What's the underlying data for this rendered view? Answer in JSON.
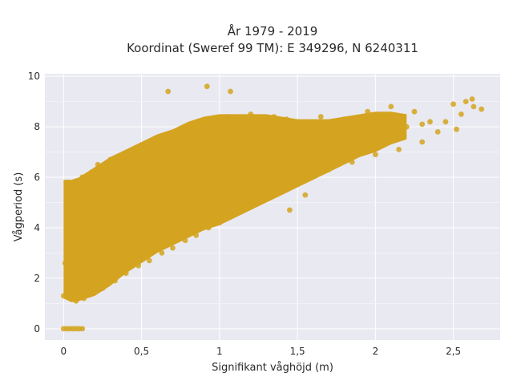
{
  "chart_data": {
    "type": "scatter",
    "title_lines": [
      "År 1979 - 2019",
      "Koordinat (Sweref 99 TM): E 349296, N 6240311"
    ],
    "xlabel": "Signifikant våghöjd (m)",
    "ylabel": "Vågperiod (s)",
    "xlim": [
      -0.12,
      2.8
    ],
    "ylim": [
      -0.45,
      10.1
    ],
    "xticks": [
      0,
      0.5,
      1,
      1.5,
      2,
      2.5
    ],
    "xtick_labels": [
      "0",
      "0,5",
      "1",
      "1,5",
      "2",
      "2,5"
    ],
    "yticks": [
      0,
      2,
      4,
      6,
      8,
      10
    ],
    "ytick_labels": [
      "0",
      "2",
      "4",
      "6",
      "8",
      "10"
    ],
    "grid": true,
    "marker_color": "#D4A420",
    "plot_bg": "#E9E9F1",
    "series": [
      {
        "values": [
          [
            0.0,
            0.0
          ],
          [
            0.02,
            0.0
          ],
          [
            0.04,
            0.0
          ],
          [
            0.06,
            0.0
          ],
          [
            0.08,
            0.0
          ],
          [
            0.1,
            0.0
          ],
          [
            0.12,
            0.0
          ],
          [
            0.0,
            1.3
          ],
          [
            0.01,
            2.6
          ],
          [
            0.02,
            4.0
          ],
          [
            0.03,
            5.8
          ],
          [
            0.05,
            1.2
          ],
          [
            0.05,
            3.2
          ],
          [
            0.06,
            5.7
          ],
          [
            0.08,
            1.1
          ],
          [
            0.1,
            3.8
          ],
          [
            0.12,
            6.0
          ],
          [
            0.13,
            1.2
          ],
          [
            0.15,
            4.8
          ],
          [
            0.18,
            6.2
          ],
          [
            0.19,
            1.4
          ],
          [
            0.2,
            3.0
          ],
          [
            0.22,
            6.5
          ],
          [
            0.25,
            1.6
          ],
          [
            0.27,
            4.2
          ],
          [
            0.3,
            6.7
          ],
          [
            0.33,
            1.9
          ],
          [
            0.35,
            3.6
          ],
          [
            0.38,
            6.8
          ],
          [
            0.4,
            2.2
          ],
          [
            0.43,
            5.0
          ],
          [
            0.45,
            7.0
          ],
          [
            0.48,
            2.5
          ],
          [
            0.5,
            4.4
          ],
          [
            0.53,
            7.2
          ],
          [
            0.55,
            2.7
          ],
          [
            0.58,
            5.5
          ],
          [
            0.6,
            7.4
          ],
          [
            0.63,
            3.0
          ],
          [
            0.65,
            4.8
          ],
          [
            0.68,
            7.6
          ],
          [
            0.7,
            3.2
          ],
          [
            0.73,
            6.0
          ],
          [
            0.75,
            7.8
          ],
          [
            0.78,
            3.5
          ],
          [
            0.8,
            5.2
          ],
          [
            0.83,
            8.0
          ],
          [
            0.85,
            3.7
          ],
          [
            0.88,
            6.4
          ],
          [
            0.9,
            8.2
          ],
          [
            0.93,
            4.0
          ],
          [
            0.95,
            5.8
          ],
          [
            0.98,
            8.3
          ],
          [
            1.0,
            4.2
          ],
          [
            1.03,
            6.8
          ],
          [
            1.05,
            8.4
          ],
          [
            1.08,
            4.5
          ],
          [
            1.1,
            6.2
          ],
          [
            1.13,
            8.3
          ],
          [
            1.15,
            4.8
          ],
          [
            1.18,
            7.0
          ],
          [
            1.2,
            8.5
          ],
          [
            1.23,
            5.0
          ],
          [
            1.25,
            6.5
          ],
          [
            1.28,
            8.2
          ],
          [
            1.3,
            5.3
          ],
          [
            1.33,
            7.3
          ],
          [
            1.35,
            8.4
          ],
          [
            1.38,
            5.5
          ],
          [
            1.4,
            6.8
          ],
          [
            1.43,
            8.3
          ],
          [
            1.45,
            5.8
          ],
          [
            1.48,
            7.5
          ],
          [
            1.5,
            8.2
          ],
          [
            1.55,
            6.0
          ],
          [
            1.6,
            7.2
          ],
          [
            1.65,
            8.4
          ],
          [
            1.7,
            6.3
          ],
          [
            1.75,
            7.5
          ],
          [
            1.8,
            8.3
          ],
          [
            1.85,
            6.6
          ],
          [
            1.9,
            7.7
          ],
          [
            1.95,
            8.6
          ],
          [
            2.0,
            6.9
          ],
          [
            2.05,
            7.8
          ],
          [
            2.1,
            8.8
          ],
          [
            2.15,
            7.1
          ],
          [
            2.2,
            8.0
          ],
          [
            2.25,
            8.6
          ],
          [
            2.3,
            7.4
          ],
          [
            2.35,
            8.2
          ],
          [
            2.4,
            7.8
          ],
          [
            2.45,
            8.2
          ],
          [
            2.5,
            8.9
          ],
          [
            2.52,
            7.9
          ],
          [
            2.55,
            8.5
          ],
          [
            2.58,
            9.0
          ],
          [
            2.62,
            9.1
          ],
          [
            2.63,
            8.8
          ],
          [
            2.68,
            8.7
          ],
          [
            0.67,
            9.4
          ],
          [
            0.92,
            9.6
          ],
          [
            1.07,
            9.4
          ],
          [
            0.75,
            4.1
          ],
          [
            1.55,
            5.3
          ],
          [
            1.45,
            4.7
          ],
          [
            2.3,
            8.1
          ]
        ]
      }
    ],
    "bands": {
      "x": [
        0.0,
        0.05,
        0.1,
        0.2,
        0.3,
        0.4,
        0.5,
        0.6,
        0.7,
        0.8,
        0.9,
        1.0,
        1.1,
        1.2,
        1.3,
        1.4,
        1.5,
        1.6,
        1.7,
        1.8,
        1.9,
        2.0,
        2.1,
        2.2
      ],
      "lower": [
        1.2,
        1.05,
        1.1,
        1.3,
        1.7,
        2.2,
        2.6,
        3.0,
        3.3,
        3.6,
        3.9,
        4.1,
        4.4,
        4.7,
        5.0,
        5.3,
        5.6,
        5.9,
        6.2,
        6.5,
        6.8,
        7.0,
        7.3,
        7.5
      ],
      "upper": [
        5.9,
        5.9,
        6.0,
        6.4,
        6.8,
        7.1,
        7.4,
        7.7,
        7.9,
        8.2,
        8.4,
        8.5,
        8.5,
        8.5,
        8.5,
        8.4,
        8.3,
        8.3,
        8.3,
        8.4,
        8.5,
        8.6,
        8.6,
        8.5
      ]
    }
  }
}
